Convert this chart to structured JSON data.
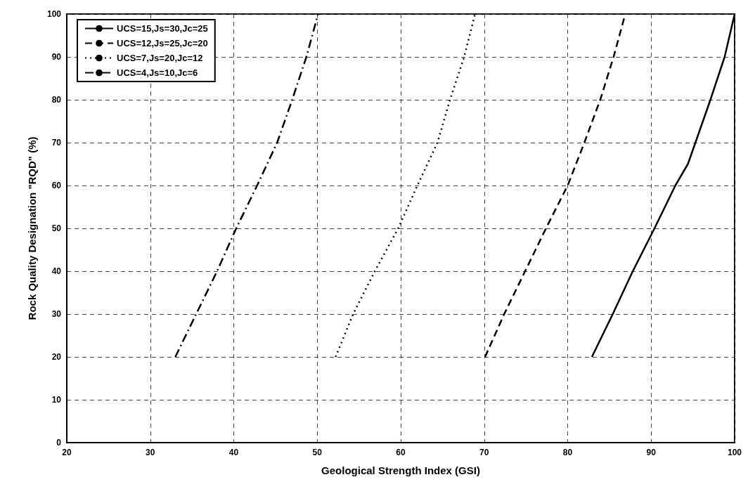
{
  "chart_data": {
    "type": "line",
    "xlabel": "Geological Strength Index (GSI)",
    "ylabel": "Rock Quality Designation \"RQD\" (%)",
    "xlim": [
      20,
      100
    ],
    "xticks": [
      20,
      30,
      40,
      50,
      60,
      70,
      80,
      90,
      100
    ],
    "ylim": [
      0,
      100
    ],
    "yticks": [
      0,
      10,
      20,
      30,
      40,
      50,
      60,
      70,
      80,
      90,
      100
    ],
    "grid": true,
    "legend": "top left",
    "series": [
      {
        "name": "UCS=15,Js=30,Jc=25",
        "color": "#000000",
        "line_style": "solid",
        "x": [
          82.9,
          85.4,
          87.8,
          90.4,
          92.9,
          94.4,
          95.3,
          97.1,
          98.8,
          100
        ],
        "values": [
          20,
          30,
          40,
          50,
          60,
          65,
          70,
          80,
          90,
          100
        ]
      },
      {
        "name": "UCS=12,Js=25,Jc=20",
        "color": "#000000",
        "line_style": "dashed",
        "x": [
          70.1,
          72.4,
          74.9,
          77.4,
          80.0,
          82.0,
          83.9,
          85.5,
          86.9
        ],
        "values": [
          20,
          30,
          40,
          50,
          60,
          70,
          80,
          90,
          100
        ]
      },
      {
        "name": "UCS=7,Js=20,Jc=12",
        "color": "#000000",
        "line_style": "dotted",
        "x": [
          52.2,
          54.3,
          56.9,
          59.7,
          62.0,
          64.4,
          65.9,
          67.6,
          68.9
        ],
        "values": [
          20,
          30,
          40,
          50,
          60,
          70,
          80,
          90,
          100
        ]
      },
      {
        "name": "UCS=4,Js=10,Jc=6",
        "color": "#000000",
        "line_style": "dashdot",
        "x": [
          33.0,
          35.5,
          38.0,
          40.3,
          42.8,
          45.2,
          47.0,
          48.7,
          50.1
        ],
        "values": [
          20,
          30,
          40,
          50,
          60,
          70,
          80,
          90,
          100
        ]
      }
    ]
  }
}
